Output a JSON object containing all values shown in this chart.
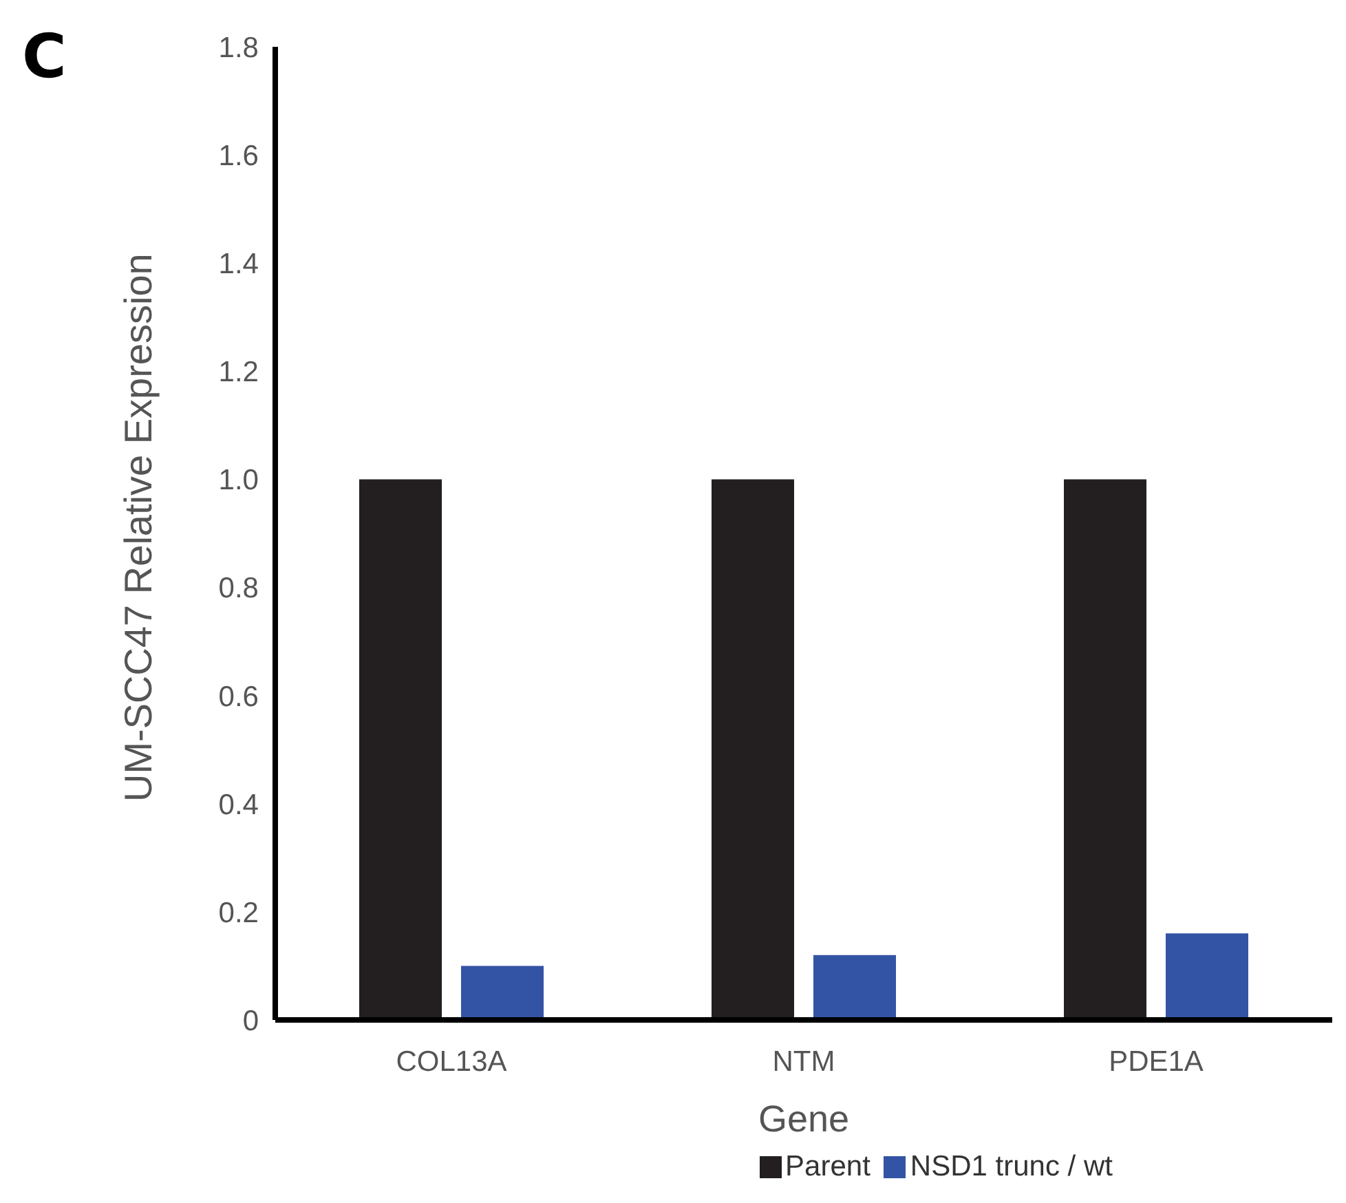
{
  "chart_data": {
    "type": "bar",
    "annotations": [
      "C"
    ],
    "xlabel": "Gene",
    "ylabel": "UM-SCC47 Relative Expression",
    "categories": [
      "COL13A",
      "NTM",
      "PDE1A"
    ],
    "series": [
      {
        "name": "Parent",
        "color": "#231f20",
        "values": [
          1.0,
          1.0,
          1.0
        ]
      },
      {
        "name": "NSD1 trunc / wt",
        "color": "#3353a4",
        "values": [
          0.1,
          0.12,
          0.16
        ]
      }
    ],
    "ylim": [
      0,
      1.8
    ],
    "yticks": [
      0,
      0.2,
      0.4,
      0.6,
      0.8,
      {
        "value": 1,
        "label": "1.0"
      },
      1.2,
      1.4,
      1.6,
      1.8
    ],
    "grid": false,
    "legend": "bottom"
  }
}
